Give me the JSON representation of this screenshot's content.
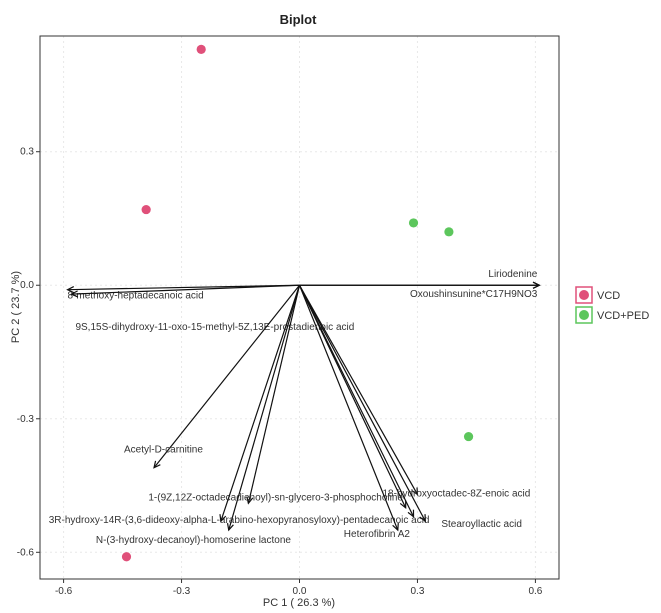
{
  "chart_data": {
    "type": "scatter",
    "title": "Biplot",
    "xlabel": "PC 1 ( 26.3 %)",
    "ylabel": "PC 2 ( 23.7 %)",
    "xlim": [
      -0.66,
      0.66
    ],
    "ylim": [
      -0.66,
      0.56
    ],
    "x_ticks": [
      -0.6,
      -0.3,
      0.0,
      0.3,
      0.6
    ],
    "x_tick_labels": [
      "-0.6",
      "-0.3",
      "0.0",
      "0.3",
      "0.6"
    ],
    "y_ticks": [
      -0.6,
      -0.3,
      0.0,
      0.3
    ],
    "y_tick_labels": [
      "-0.6",
      "-0.3",
      "0.0",
      "0.3"
    ],
    "grid": true,
    "legend_position": "right",
    "series": [
      {
        "name": "VCD",
        "color": "#e0507a",
        "points": [
          {
            "x": -0.25,
            "y": 0.53
          },
          {
            "x": -0.39,
            "y": 0.17
          },
          {
            "x": -0.44,
            "y": -0.61
          }
        ]
      },
      {
        "name": "VCD+PED",
        "color": "#5cc65c",
        "points": [
          {
            "x": 0.29,
            "y": 0.14
          },
          {
            "x": 0.38,
            "y": 0.12
          },
          {
            "x": 0.43,
            "y": -0.34
          }
        ]
      }
    ],
    "loadings": [
      {
        "label": "Liriodenine",
        "x": 0.61,
        "y": 0.0
      },
      {
        "label": "Oxoushinsunine*C17H9NO3",
        "x": 0.61,
        "y": 0.0
      },
      {
        "label": "8-methoxy-heptadecanoic acid",
        "x": -0.59,
        "y": -0.01
      },
      {
        "label": "9S,15S-dihydroxy-11-oxo-15-methyl-5Z,13E-prostadienoic acid",
        "x": -0.58,
        "y": -0.02
      },
      {
        "label": "Acetyl-D-carnitine",
        "x": -0.37,
        "y": -0.41
      },
      {
        "label": "1-(9Z,12Z-octadecadienoyl)-sn-glycero-3-phosphocholine",
        "x": -0.13,
        "y": -0.49
      },
      {
        "label": "3R-hydroxy-14R-(3,6-dideoxy-alpha-L-arabino-hexopyranosyloxy)-pentadecanoic acid",
        "x": -0.18,
        "y": -0.55
      },
      {
        "label": "N-(3-hydroxy-decanoyl)-homoserine lactone",
        "x": -0.2,
        "y": -0.53
      },
      {
        "label": "Heterofibrin A2",
        "x": 0.25,
        "y": -0.55
      },
      {
        "label": "18-hydroxyoctadec-8Z-enoic acid",
        "x": 0.3,
        "y": -0.47
      },
      {
        "label": "Stearoyllactic acid",
        "x": 0.32,
        "y": -0.53
      },
      {
        "label": "",
        "x": 0.27,
        "y": -0.5
      },
      {
        "label": "",
        "x": 0.29,
        "y": -0.52
      }
    ]
  }
}
